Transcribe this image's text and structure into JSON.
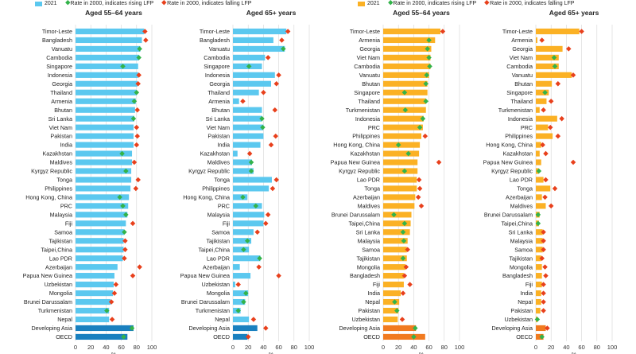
{
  "legend": {
    "left": {
      "bar_label": "2021",
      "rising_label": "Rate in 2000, indicates rising LFP",
      "falling_label": "Rate in 2000, indicates falling LFP"
    },
    "right": {
      "bar_label": "2021",
      "rising_label": "Rate in 2000, indicates rising LFP",
      "falling_label": "Rate in 2000, indicates falling LFP"
    }
  },
  "colors": {
    "men_bar": "#5bc8ef",
    "men_bar_aggregate": "#1a80bf",
    "women_bar": "#fbb124",
    "women_bar_aggregate": "#f17a1f",
    "rising_marker": "#33b34a",
    "falling_marker": "#e8401c"
  },
  "chart_data": [
    {
      "type": "bar",
      "title": "Aged 55–64 years",
      "xlabel": "%",
      "xlim": [
        0,
        100
      ],
      "ticks": [
        "0",
        "20",
        "40",
        "60",
        "80",
        "100"
      ],
      "categories": [
        "Timor-Leste",
        "Bangladesh",
        "Vanuatu",
        "Cambodia",
        "Singapore",
        "Indonesia",
        "Georgia",
        "Thailand",
        "Armenia",
        "Bhutan",
        "Sri Lanka",
        "Viet Nam",
        "Pakistan",
        "India",
        "Kazakhstan",
        "Maldives",
        "Kyrgyz Republic",
        "Tonga",
        "Philippines",
        "Hong Kong, China",
        "PRC",
        "Malaysia",
        "Fiji",
        "Samoa",
        "Tajikistan",
        "Taipei,China",
        "Lao PDR",
        "Azerbaijan",
        "Papua New Guinea",
        "Uzbekistan",
        "Mongolia",
        "Brunei Darussalam",
        "Turkmenistan",
        "Nepal",
        "Developing Asia",
        "OECD"
      ],
      "series": [
        {
          "name": "2021",
          "values": [
            90,
            87,
            85,
            83,
            82,
            82,
            81,
            80,
            79,
            78,
            77,
            76,
            76,
            76,
            74,
            74,
            73,
            73,
            72,
            70,
            69,
            68,
            66,
            64,
            63,
            63,
            62,
            55,
            51,
            50,
            49,
            46,
            44,
            44,
            76,
            68
          ]
        },
        {
          "name": "2000",
          "values": [
            91,
            92,
            84,
            83,
            62,
            83,
            82,
            80,
            77,
            81,
            76,
            80,
            81,
            80,
            61,
            77,
            66,
            82,
            79,
            58,
            62,
            66,
            75,
            64,
            65,
            65,
            64,
            84,
            75,
            53,
            51,
            47,
            41,
            48,
            74,
            63
          ]
        }
      ],
      "aggregate_count": 2
    },
    {
      "type": "bar",
      "title": "Aged 65+ years",
      "xlabel": "%",
      "xlim": [
        0,
        100
      ],
      "ticks": [
        "0",
        "20",
        "40",
        "60",
        "80",
        "100"
      ],
      "categories": [
        "Timor-Leste",
        "Bangladesh",
        "Vanuatu",
        "Cambodia",
        "Singapore",
        "Indonesia",
        "Georgia",
        "Thailand",
        "Armenia",
        "Bhutan",
        "Sri Lanka",
        "Viet Nam",
        "Pakistan",
        "India",
        "Kazakhstan",
        "Maldives",
        "Kyrgyz Republic",
        "Tonga",
        "Philippines",
        "Hong Kong, China",
        "PRC",
        "Malaysia",
        "Fiji",
        "Samoa",
        "Tajikistan",
        "Taipei,China",
        "Lao PDR",
        "Azerbaijan",
        "Papua New Guinea",
        "Uzbekistan",
        "Mongolia",
        "Brunei Darussalam",
        "Turkmenistan",
        "Nepal",
        "Developing Asia",
        "OECD"
      ],
      "series": [
        {
          "name": "2021",
          "values": [
            70,
            53,
            68,
            42,
            38,
            55,
            50,
            34,
            8,
            38,
            38,
            40,
            40,
            36,
            6,
            25,
            27,
            51,
            47,
            19,
            38,
            41,
            40,
            27,
            24,
            21,
            36,
            9,
            23,
            3,
            20,
            16,
            10,
            21,
            32,
            19
          ]
        },
        {
          "name": "2000",
          "values": [
            72,
            64,
            66,
            46,
            21,
            60,
            57,
            40,
            13,
            55,
            38,
            39,
            56,
            50,
            22,
            24,
            24,
            57,
            52,
            13,
            30,
            46,
            43,
            32,
            19,
            14,
            35,
            34,
            60,
            7,
            17,
            14,
            7,
            27,
            43,
            20
          ]
        }
      ],
      "aggregate_count": 2
    },
    {
      "type": "bar",
      "title": "Aged 55–64 years",
      "xlabel": "%",
      "xlim": [
        0,
        100
      ],
      "ticks": [
        "0",
        "20",
        "40",
        "60",
        "80",
        "100"
      ],
      "categories": [
        "Timor-Leste",
        "Armenia",
        "Georgia",
        "Viet Nam",
        "Cambodia",
        "Vanuatu",
        "Bhutan",
        "Singapore",
        "Thailand",
        "Turkmenistan",
        "Indonesia",
        "PRC",
        "Philippines",
        "Hong Kong, China",
        "Kazakhstan",
        "Papua New Guinea",
        "Kyrgyz Republic",
        "Lao PDR",
        "Tonga",
        "Azerbaijan",
        "Maldives",
        "Brunei Darussalam",
        "Taipei,China",
        "Sri Lanka",
        "Malaysia",
        "Samoa",
        "Tajikistan",
        "Mongolia",
        "Bangladesh",
        "Fiji",
        "India",
        "Nepal",
        "Pakistan",
        "Uzbekistan",
        "Developing Asia",
        "OECD"
      ],
      "series": [
        {
          "name": "2021",
          "values": [
            75,
            68,
            63,
            62,
            62,
            60,
            58,
            58,
            56,
            56,
            53,
            52,
            50,
            48,
            47,
            45,
            45,
            44,
            44,
            42,
            41,
            37,
            36,
            35,
            32,
            31,
            31,
            29,
            27,
            27,
            23,
            21,
            20,
            19,
            43,
            55
          ]
        },
        {
          "name": "2000",
          "values": [
            78,
            60,
            58,
            60,
            61,
            57,
            56,
            28,
            56,
            29,
            52,
            48,
            55,
            20,
            33,
            73,
            28,
            47,
            48,
            46,
            50,
            14,
            28,
            26,
            27,
            32,
            26,
            30,
            28,
            35,
            26,
            15,
            18,
            25,
            42,
            40
          ]
        }
      ],
      "aggregate_count": 2
    },
    {
      "type": "bar",
      "title": "Aged 65+ years",
      "xlabel": "%",
      "xlim": [
        0,
        100
      ],
      "ticks": [
        "0",
        "20",
        "40",
        "60",
        "80",
        "100"
      ],
      "categories": [
        "Timor-Leste",
        "Armenia",
        "Georgia",
        "Viet Nam",
        "Cambodia",
        "Vanuatu",
        "Bhutan",
        "Singapore",
        "Thailand",
        "Turkmenistan",
        "Indonesia",
        "PRC",
        "Philippines",
        "Hong Kong, China",
        "Kazakhstan",
        "Papua New Guinea",
        "Kyrgyz Republic",
        "Lao PDR",
        "Tonga",
        "Azerbaijan",
        "Maldives",
        "Brunei Darussalam",
        "Taipei,China",
        "Sri Lanka",
        "Malaysia",
        "Samoa",
        "Tajikistan",
        "Mongolia",
        "Bangladesh",
        "Fiji",
        "India",
        "Nepal",
        "Pakistan",
        "Uzbekistan",
        "Developing Asia",
        "OECD"
      ],
      "series": [
        {
          "name": "2021",
          "values": [
            57,
            2,
            35,
            30,
            30,
            47,
            21,
            17,
            14,
            5,
            28,
            16,
            22,
            7,
            5,
            7,
            4,
            10,
            19,
            8,
            13,
            5,
            4,
            9,
            9,
            9,
            7,
            8,
            8,
            8,
            7,
            7,
            6,
            2,
            13,
            10
          ]
        },
        {
          "name": "2000",
          "values": [
            60,
            8,
            43,
            24,
            25,
            49,
            29,
            12,
            20,
            10,
            34,
            19,
            29,
            9,
            13,
            49,
            4,
            13,
            25,
            12,
            20,
            3,
            3,
            10,
            10,
            10,
            8,
            12,
            13,
            10,
            10,
            10,
            10,
            2,
            15,
            8
          ]
        }
      ],
      "aggregate_count": 2
    }
  ]
}
